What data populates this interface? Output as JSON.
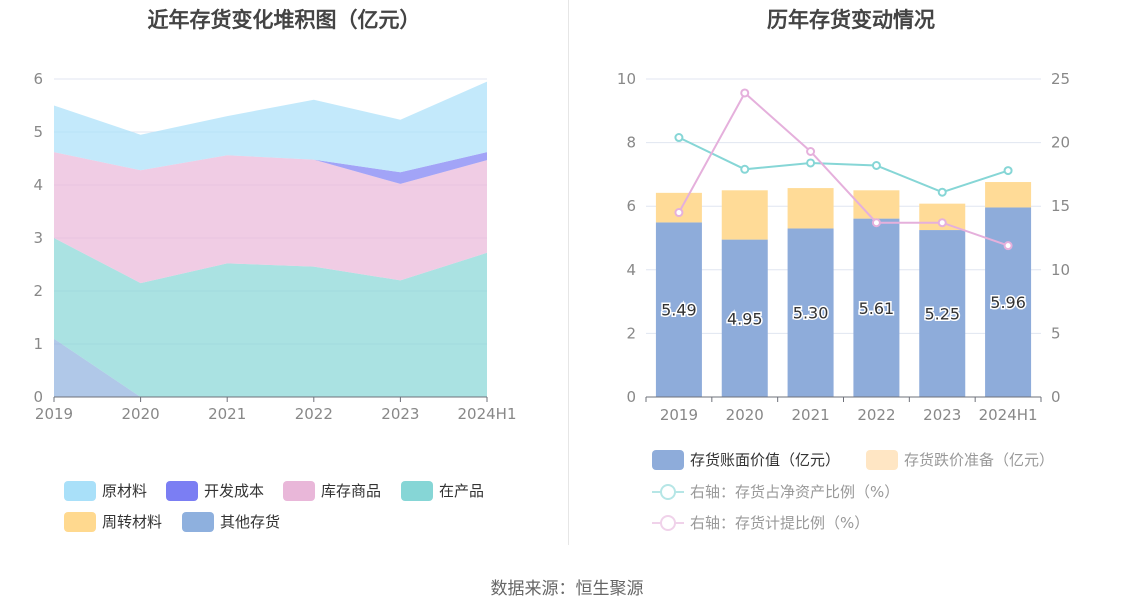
{
  "left_title": "近年存货变化堆积图（亿元）",
  "right_title": "历年存货变动情况",
  "source": "数据来源：恒生聚源",
  "chart_data": [
    {
      "type": "area",
      "title": "近年存货变化堆积图（亿元）",
      "categories": [
        "2019",
        "2020",
        "2021",
        "2022",
        "2023",
        "2024H1"
      ],
      "ylim": [
        0,
        6
      ],
      "yticks": [
        "0",
        "1",
        "2",
        "3",
        "4",
        "5",
        "6"
      ],
      "stacked": true,
      "series": [
        {
          "name": "其他存货",
          "color": "#8eb0de",
          "values": [
            1.1,
            0.0,
            0.0,
            0.0,
            0.0,
            0.0
          ]
        },
        {
          "name": "周转材料",
          "color": "#ffd98f",
          "values": [
            0.0,
            0.0,
            0.0,
            0.0,
            0.0,
            0.0
          ]
        },
        {
          "name": "在产品",
          "color": "#86d6d6",
          "values": [
            1.9,
            2.15,
            2.52,
            2.46,
            2.2,
            2.72
          ]
        },
        {
          "name": "库存商品",
          "color": "#e9b7d9",
          "values": [
            1.62,
            2.13,
            2.04,
            2.02,
            1.82,
            1.75
          ]
        },
        {
          "name": "开发成本",
          "color": "#7b7ef3",
          "values": [
            0.0,
            0.0,
            0.0,
            0.0,
            0.22,
            0.15
          ]
        },
        {
          "name": "原材料",
          "color": "#a9e0f9",
          "values": [
            0.88,
            0.67,
            0.74,
            1.13,
            0.99,
            1.33
          ]
        }
      ],
      "legend": [
        {
          "name": "原材料",
          "color": "#a9e0f9"
        },
        {
          "name": "开发成本",
          "color": "#7b7ef3"
        },
        {
          "name": "库存商品",
          "color": "#e9b7d9"
        },
        {
          "name": "在产品",
          "color": "#86d6d6"
        },
        {
          "name": "周转材料",
          "color": "#ffd98f"
        },
        {
          "name": "其他存货",
          "color": "#8eb0de"
        }
      ],
      "legend_position": "bottom"
    },
    {
      "type": "bar",
      "title": "历年存货变动情况",
      "categories": [
        "2019",
        "2020",
        "2021",
        "2022",
        "2023",
        "2024H1"
      ],
      "ylim": [
        0,
        10
      ],
      "yticks": [
        "0",
        "2",
        "4",
        "6",
        "8",
        "10"
      ],
      "y2lim": [
        0,
        25
      ],
      "y2ticks": [
        "0",
        "5",
        "10",
        "15",
        "20",
        "25"
      ],
      "stacked": true,
      "series": [
        {
          "name": "存货账面价值（亿元）",
          "color": "#8eacda",
          "axis": "left",
          "values": [
            5.49,
            4.95,
            5.3,
            5.61,
            5.25,
            5.96
          ],
          "labels": [
            "5.49",
            "4.95",
            "5.30",
            "5.61",
            "5.25",
            "5.96"
          ]
        },
        {
          "name": "存货跌价准备（亿元）",
          "color": "#ffdb97",
          "axis": "left",
          "values": [
            0.93,
            1.55,
            1.27,
            0.89,
            0.83,
            0.8
          ]
        },
        {
          "name": "右轴：存货占净资产比例（%）",
          "color": "#86d6d6",
          "axis": "right",
          "type": "line",
          "values": [
            20.4,
            17.9,
            18.4,
            18.2,
            16.1,
            17.8
          ]
        },
        {
          "name": "右轴：存货计提比例（%）",
          "color": "#e5b0dc",
          "axis": "right",
          "type": "line",
          "values": [
            14.5,
            23.9,
            19.3,
            13.7,
            13.7,
            11.9
          ]
        }
      ],
      "legend_position": "bottom"
    }
  ]
}
